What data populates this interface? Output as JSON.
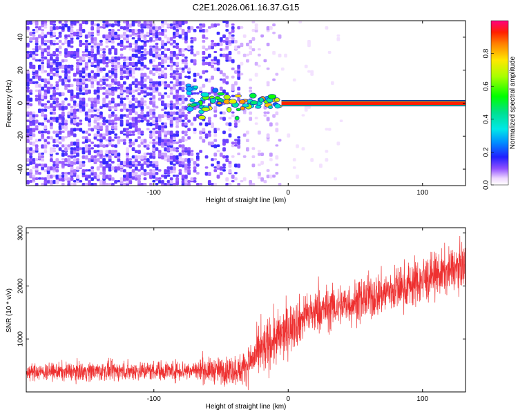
{
  "chart_data": [
    {
      "type": "heatmap",
      "title": "C2E1.2026.061.16.37.G15",
      "xlabel": "Height of straight line (km)",
      "ylabel": "Frequency (Hz)",
      "xlim": [
        -195,
        132
      ],
      "ylim": [
        -50,
        50
      ],
      "xticks": [
        -100,
        0,
        100
      ],
      "xtick_labels": [
        "-100",
        "0",
        "100"
      ],
      "yticks": [
        -40,
        -20,
        0,
        20,
        40
      ],
      "ytick_labels": [
        "-40",
        "-20",
        "0",
        "20",
        "40"
      ],
      "colorbar": {
        "label": "Normalized spectral amplitude",
        "range": [
          0,
          1
        ],
        "ticks": [
          0,
          0.2,
          0.4,
          0.6,
          0.8
        ],
        "tick_labels": [
          "0.0",
          "0.2",
          "0.4",
          "0.6",
          "0.8"
        ]
      },
      "features": {
        "noise_region_x": [
          -195,
          -35
        ],
        "sparse_region_x": [
          -35,
          -5
        ],
        "signal_onset_x": -75,
        "tone_frequency_hz": 0,
        "tone_band_hz": [
          -1.5,
          1.5
        ],
        "wobble_region_x": [
          -75,
          -5
        ]
      }
    },
    {
      "type": "line",
      "xlabel": "Height of straight line (km)",
      "ylabel": "SNR (10 * v/v)",
      "xlim": [
        -195,
        132
      ],
      "ylim": [
        0,
        3100
      ],
      "xticks": [
        -100,
        0,
        100
      ],
      "xtick_labels": [
        "-100",
        "0",
        "100"
      ],
      "yticks": [
        1000,
        2000,
        3000
      ],
      "ytick_labels": [
        "1000",
        "2000",
        "3000"
      ],
      "series": [
        {
          "name": "SNR",
          "color": "#ee3030",
          "profile_x": [
            -195,
            -150,
            -100,
            -70,
            -50,
            -35,
            -25,
            -15,
            -5,
            5,
            15,
            30,
            50,
            75,
            100,
            115,
            132
          ],
          "profile_mean": [
            370,
            390,
            400,
            410,
            400,
            420,
            650,
            900,
            1050,
            1300,
            1450,
            1580,
            1700,
            1900,
            2100,
            2250,
            2400
          ],
          "profile_spread": [
            150,
            180,
            180,
            200,
            250,
            300,
            400,
            500,
            500,
            450,
            420,
            400,
            420,
            420,
            450,
            420,
            400
          ]
        }
      ]
    }
  ]
}
